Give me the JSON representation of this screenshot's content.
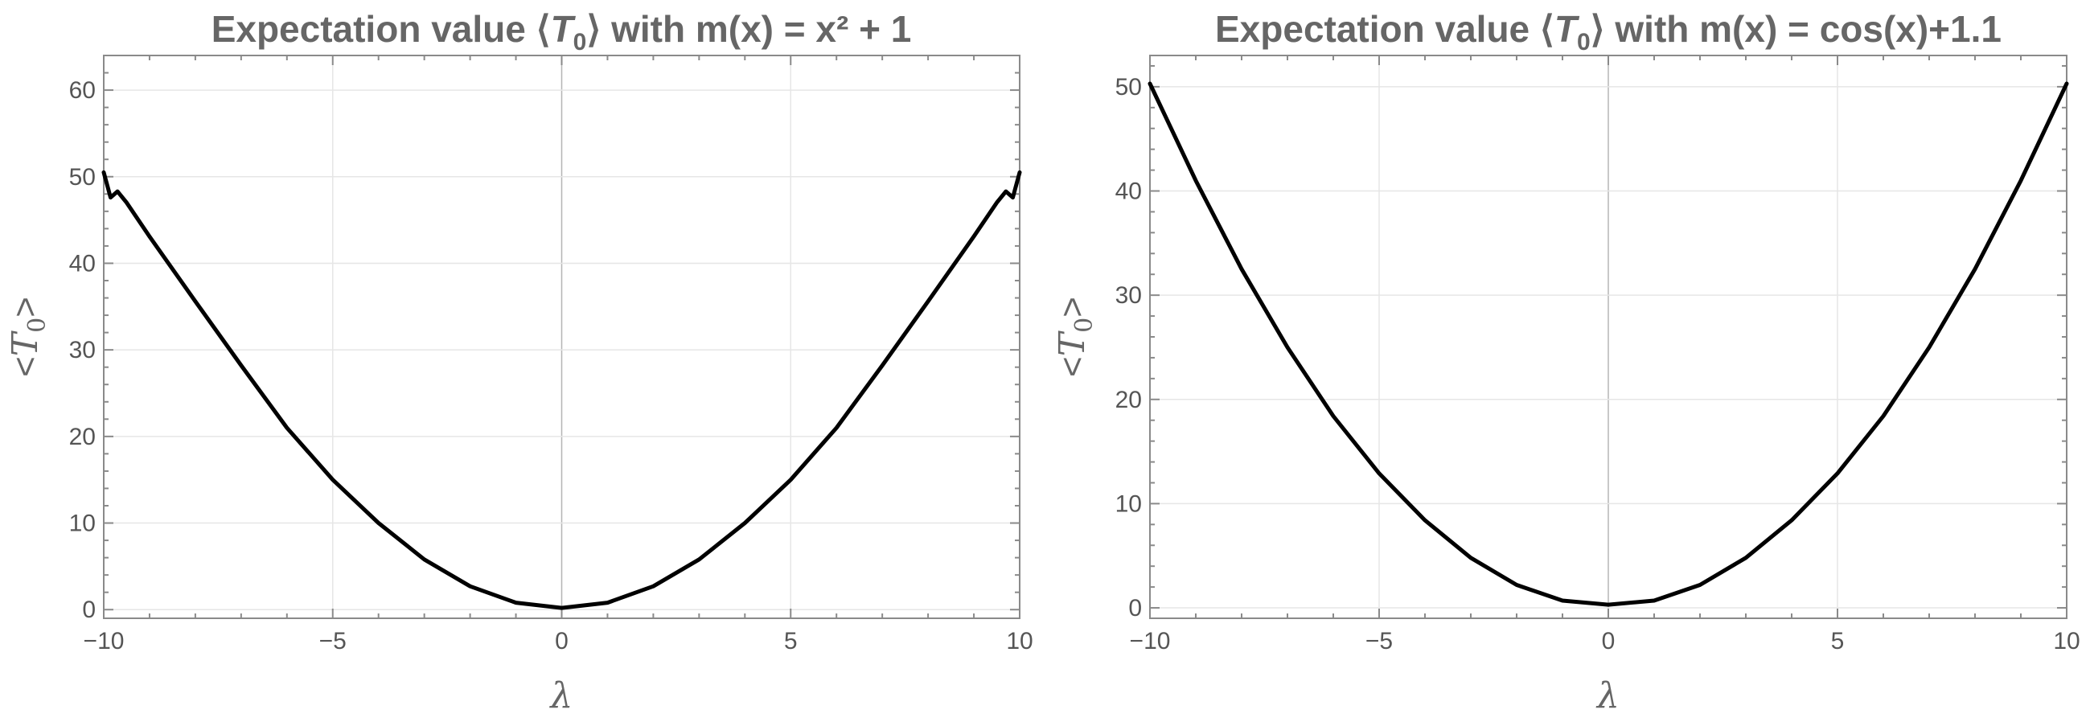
{
  "chart_data": [
    {
      "type": "line",
      "title_parts": [
        "Expectation value ⟨",
        "T",
        "0",
        "⟩ with m(x) = x² + 1"
      ],
      "xlabel": "λ",
      "ylabel_parts": [
        "<",
        "T",
        "0",
        ">"
      ],
      "xlim": [
        -10,
        10
      ],
      "ylim": [
        -1,
        64
      ],
      "x_ticks": [
        -10,
        -5,
        0,
        5,
        10
      ],
      "x_tick_labels": [
        "−10",
        "−5",
        "0",
        "5",
        "10"
      ],
      "y_ticks": [
        0,
        10,
        20,
        30,
        40,
        50,
        60
      ],
      "y_tick_labels": [
        "0",
        "10",
        "20",
        "30",
        "40",
        "50",
        "60"
      ],
      "grid": true,
      "series": [
        {
          "x": [
            -10,
            -9.85,
            -9.7,
            -9.5,
            -9,
            -8,
            -7,
            -6,
            -5,
            -4,
            -3,
            -2,
            -1,
            0,
            1,
            2,
            3,
            4,
            5,
            6,
            7,
            8,
            9,
            9.5,
            9.7,
            9.85,
            10
          ],
          "y": [
            50.5,
            47.6,
            48.3,
            47.0,
            43.1,
            35.6,
            28.2,
            21.0,
            15.0,
            10.0,
            5.8,
            2.7,
            0.8,
            0.2,
            0.8,
            2.7,
            5.8,
            10.0,
            15.0,
            21.0,
            28.2,
            35.6,
            43.1,
            47.0,
            48.3,
            47.6,
            50.5
          ]
        }
      ]
    },
    {
      "type": "line",
      "title_parts": [
        "Expectation value ⟨",
        "T",
        "0",
        "⟩ with m(x) = cos(x)+1.1"
      ],
      "xlabel": "λ",
      "ylabel_parts": [
        "<",
        "T",
        "0",
        ">"
      ],
      "xlim": [
        -10,
        10
      ],
      "ylim": [
        -1,
        53
      ],
      "x_ticks": [
        -10,
        -5,
        0,
        5,
        10
      ],
      "x_tick_labels": [
        "−10",
        "−5",
        "0",
        "5",
        "10"
      ],
      "y_ticks": [
        0,
        10,
        20,
        30,
        40,
        50
      ],
      "y_tick_labels": [
        "0",
        "10",
        "20",
        "30",
        "40",
        "50"
      ],
      "grid": true,
      "series": [
        {
          "x": [
            -10,
            -9,
            -8,
            -7,
            -6,
            -5,
            -4,
            -3,
            -2,
            -1,
            0,
            1,
            2,
            3,
            4,
            5,
            6,
            7,
            8,
            9,
            10
          ],
          "y": [
            50.3,
            41.0,
            32.5,
            25.0,
            18.4,
            12.9,
            8.4,
            4.8,
            2.2,
            0.7,
            0.3,
            0.7,
            2.2,
            4.8,
            8.4,
            12.9,
            18.4,
            25.0,
            32.5,
            41.0,
            50.3
          ]
        }
      ]
    }
  ]
}
